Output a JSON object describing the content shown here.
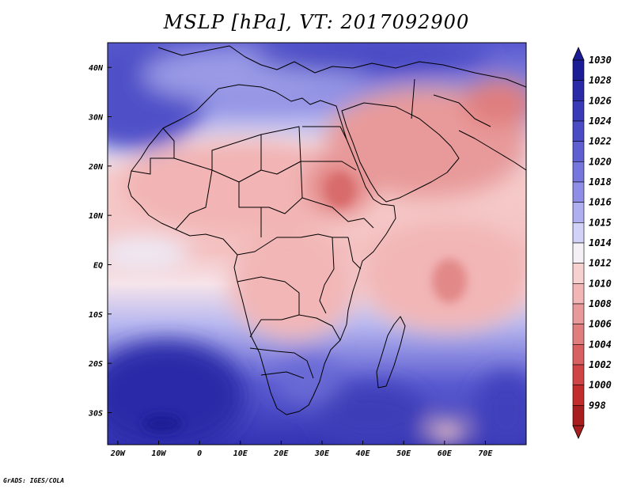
{
  "title": "MSLP [hPa], VT: 2017092900",
  "credit": "GrADS: IGES/COLA",
  "map": {
    "variable": "Mean sea level pressure",
    "units": "hPa",
    "valid_time": "2017092900",
    "region": "Africa, Arabia and western Indian Ocean",
    "lat_labels": [
      "40N",
      "30N",
      "20N",
      "10N",
      "EQ",
      "10S",
      "20S",
      "30S"
    ],
    "lon_labels": [
      "20W",
      "10W",
      "0",
      "10E",
      "20E",
      "30E",
      "40E",
      "50E",
      "60E",
      "70E"
    ],
    "regions": [
      {
        "name": "north-atlantic-high",
        "level": 1024
      },
      {
        "name": "mediterranean",
        "level": 1016
      },
      {
        "name": "sahara-low",
        "level": 1010
      },
      {
        "name": "arabia-india-low",
        "level": 1008
      },
      {
        "name": "indian-ocean",
        "level": 1012
      },
      {
        "name": "south-atlantic-high",
        "level": 1026
      },
      {
        "name": "south-indian-high",
        "level": 1024
      }
    ]
  },
  "colorbar": {
    "levels": [
      "1030",
      "1028",
      "1026",
      "1024",
      "1022",
      "1020",
      "1018",
      "1016",
      "1015",
      "1014",
      "1012",
      "1010",
      "1008",
      "1006",
      "1004",
      "1002",
      "1000",
      "998"
    ],
    "colors": [
      "#1c1c96",
      "#2a2aa8",
      "#3a3ab8",
      "#4b4bc6",
      "#5f5fd2",
      "#7676dc",
      "#8e8ee6",
      "#aeaef0",
      "#d2d2f8",
      "#f4f0f6",
      "#f7d0d0",
      "#f2b6b6",
      "#e89a9a",
      "#e07e7e",
      "#d86060",
      "#cf4444",
      "#c22c2c",
      "#a81e1e"
    ]
  }
}
